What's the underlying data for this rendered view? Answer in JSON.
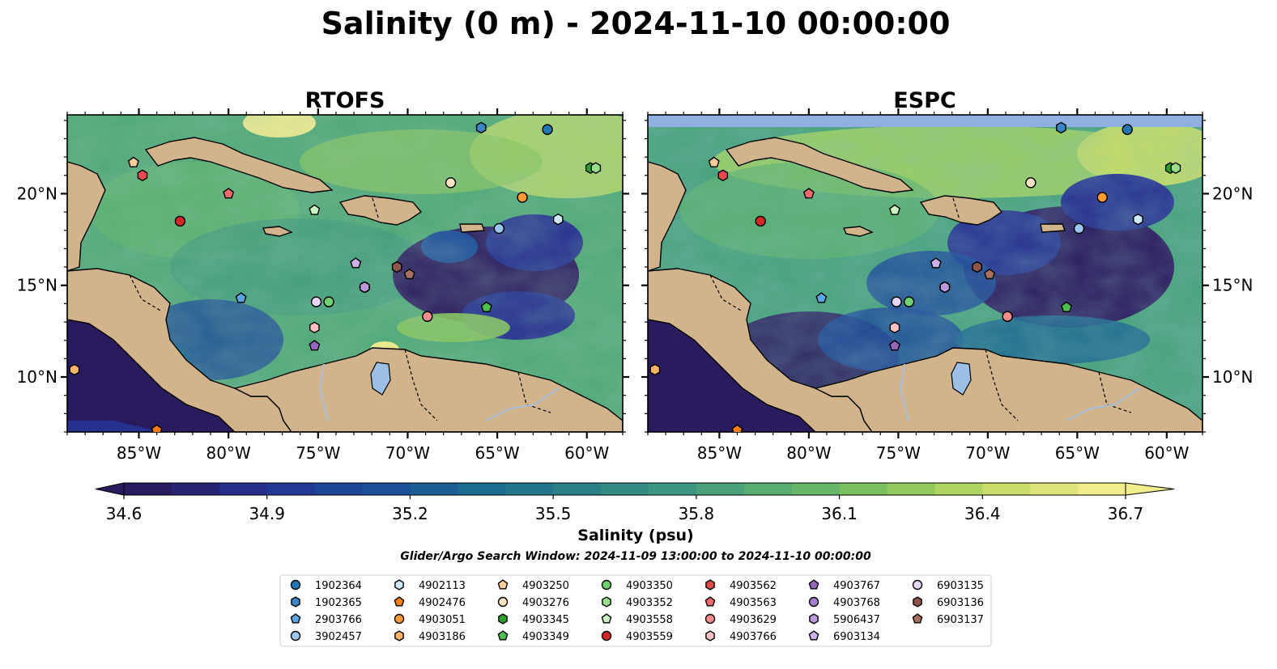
{
  "figure": {
    "title": "Salinity (0 m) - 2024-11-10 00:00:00",
    "panels": [
      {
        "name": "RTOFS"
      },
      {
        "name": "ESPC"
      }
    ],
    "lon_range": [
      -89,
      -58
    ],
    "lat_range": [
      7,
      24.3
    ],
    "x_ticks": [
      -85,
      -80,
      -75,
      -70,
      -65,
      -60
    ],
    "x_tick_labels": [
      "85°W",
      "80°W",
      "75°W",
      "70°W",
      "65°W",
      "60°W"
    ],
    "y_ticks": [
      10,
      15,
      20
    ],
    "y_tick_labels": [
      "10°N",
      "15°N",
      "20°N"
    ],
    "colorbar": {
      "label": "Salinity (psu)",
      "vmin": 34.6,
      "vmax": 36.7,
      "ticks": [
        34.6,
        34.9,
        35.2,
        35.5,
        35.8,
        36.1,
        36.4,
        36.7
      ],
      "tick_labels": [
        "34.6",
        "34.9",
        "35.2",
        "35.5",
        "35.8",
        "36.1",
        "36.4",
        "36.7"
      ],
      "extend": "both",
      "colormap_stops": [
        "#2a1a5e",
        "#25308f",
        "#1c4a9a",
        "#1b6690",
        "#2a7f88",
        "#3d9680",
        "#5ab06e",
        "#86c45c",
        "#c4dc64",
        "#f1ec8c"
      ]
    },
    "subtitle": "Glider/Argo Search Window: 2024-11-09 13:00:00 to 2024-11-10 00:00:00",
    "colors": {
      "land": "#d2b48c",
      "no_data": "#8fb0e0",
      "river": "#a9bfd8"
    }
  },
  "legend": {
    "items": [
      {
        "id": "1902364",
        "marker": "circle",
        "color": "#1f77b4"
      },
      {
        "id": "1902365",
        "marker": "hexagon",
        "color": "#3a87c8"
      },
      {
        "id": "2903766",
        "marker": "pentagon",
        "color": "#5aa6e3"
      },
      {
        "id": "3902457",
        "marker": "circle",
        "color": "#9cc8f0"
      },
      {
        "id": "4902113",
        "marker": "hexagon",
        "color": "#cfe8fb"
      },
      {
        "id": "4902476",
        "marker": "pentagon",
        "color": "#ff7f0e"
      },
      {
        "id": "4903051",
        "marker": "circle",
        "color": "#ff9a33"
      },
      {
        "id": "4903186",
        "marker": "hexagon",
        "color": "#ffb366"
      },
      {
        "id": "4903250",
        "marker": "pentagon",
        "color": "#ffcc99"
      },
      {
        "id": "4903276",
        "marker": "circle",
        "color": "#ffe4c4"
      },
      {
        "id": "4903345",
        "marker": "hexagon",
        "color": "#2ca02c"
      },
      {
        "id": "4903349",
        "marker": "pentagon",
        "color": "#4cbf4c"
      },
      {
        "id": "4903350",
        "marker": "circle",
        "color": "#6fd16f"
      },
      {
        "id": "4903352",
        "marker": "hexagon",
        "color": "#98df8a"
      },
      {
        "id": "4903558",
        "marker": "pentagon",
        "color": "#c9f5c0"
      },
      {
        "id": "4903559",
        "marker": "circle",
        "color": "#d62728"
      },
      {
        "id": "4903562",
        "marker": "hexagon",
        "color": "#e34a4b"
      },
      {
        "id": "4903563",
        "marker": "pentagon",
        "color": "#ee6a6b"
      },
      {
        "id": "4903629",
        "marker": "circle",
        "color": "#f28c8d"
      },
      {
        "id": "4903766",
        "marker": "hexagon",
        "color": "#ffc2c2"
      },
      {
        "id": "4903767",
        "marker": "pentagon",
        "color": "#9467bd"
      },
      {
        "id": "4903768",
        "marker": "circle",
        "color": "#a77fd0"
      },
      {
        "id": "5906437",
        "marker": "hexagon",
        "color": "#bb99dd"
      },
      {
        "id": "6903134",
        "marker": "pentagon",
        "color": "#cdb2ea"
      },
      {
        "id": "6903135",
        "marker": "circle",
        "color": "#e6d5f7"
      },
      {
        "id": "6903136",
        "marker": "hexagon",
        "color": "#8c564b"
      },
      {
        "id": "6903137",
        "marker": "pentagon",
        "color": "#a8705f"
      }
    ]
  },
  "chart_data": {
    "type": "scatter",
    "x_unit": "degrees longitude",
    "y_unit": "degrees latitude",
    "series": [
      {
        "name": "1902364",
        "points": [
          [
            -62.2,
            23.5
          ]
        ]
      },
      {
        "name": "1902365",
        "points": [
          [
            -65.9,
            23.6
          ]
        ]
      },
      {
        "name": "2903766",
        "points": [
          [
            -79.3,
            14.3
          ]
        ]
      },
      {
        "name": "3902457",
        "points": [
          [
            -64.9,
            18.1
          ]
        ]
      },
      {
        "name": "4902113",
        "points": [
          [
            -61.6,
            18.6
          ]
        ]
      },
      {
        "name": "4902476",
        "points": [
          [
            -84.0,
            7.1
          ]
        ]
      },
      {
        "name": "4903051",
        "points": [
          [
            -63.6,
            19.8
          ]
        ]
      },
      {
        "name": "4903186",
        "points": [
          [
            -88.6,
            10.4
          ]
        ]
      },
      {
        "name": "4903250",
        "points": [
          [
            -85.3,
            21.7
          ]
        ]
      },
      {
        "name": "4903276",
        "points": [
          [
            -67.6,
            20.6
          ]
        ]
      },
      {
        "name": "4903345",
        "points": [
          [
            -59.8,
            21.4
          ]
        ]
      },
      {
        "name": "4903349",
        "points": [
          [
            -65.6,
            13.8
          ]
        ]
      },
      {
        "name": "4903350",
        "points": [
          [
            -74.4,
            14.1
          ]
        ]
      },
      {
        "name": "4903352",
        "points": [
          [
            -59.5,
            21.4
          ]
        ]
      },
      {
        "name": "4903558",
        "points": [
          [
            -75.2,
            19.1
          ]
        ]
      },
      {
        "name": "4903559",
        "points": [
          [
            -82.7,
            18.5
          ]
        ]
      },
      {
        "name": "4903562",
        "points": [
          [
            -84.8,
            21.0
          ]
        ]
      },
      {
        "name": "4903563",
        "points": [
          [
            -80.0,
            20.0
          ]
        ]
      },
      {
        "name": "4903629",
        "points": [
          [
            -68.9,
            13.3
          ]
        ]
      },
      {
        "name": "4903766",
        "points": [
          [
            -75.2,
            12.7
          ]
        ]
      },
      {
        "name": "4903767",
        "points": [
          [
            -75.2,
            11.7
          ]
        ]
      },
      {
        "name": "4903768",
        "points": [
          [
            -72.4,
            14.9
          ]
        ]
      },
      {
        "name": "5906437",
        "points": [
          [
            -72.4,
            14.9
          ]
        ]
      },
      {
        "name": "6903134",
        "points": [
          [
            -72.9,
            16.2
          ]
        ]
      },
      {
        "name": "6903135",
        "points": [
          [
            -75.1,
            14.1
          ]
        ]
      },
      {
        "name": "6903136",
        "points": [
          [
            -70.6,
            16.0
          ]
        ]
      },
      {
        "name": "6903137",
        "points": [
          [
            -69.9,
            15.6
          ]
        ]
      }
    ]
  }
}
